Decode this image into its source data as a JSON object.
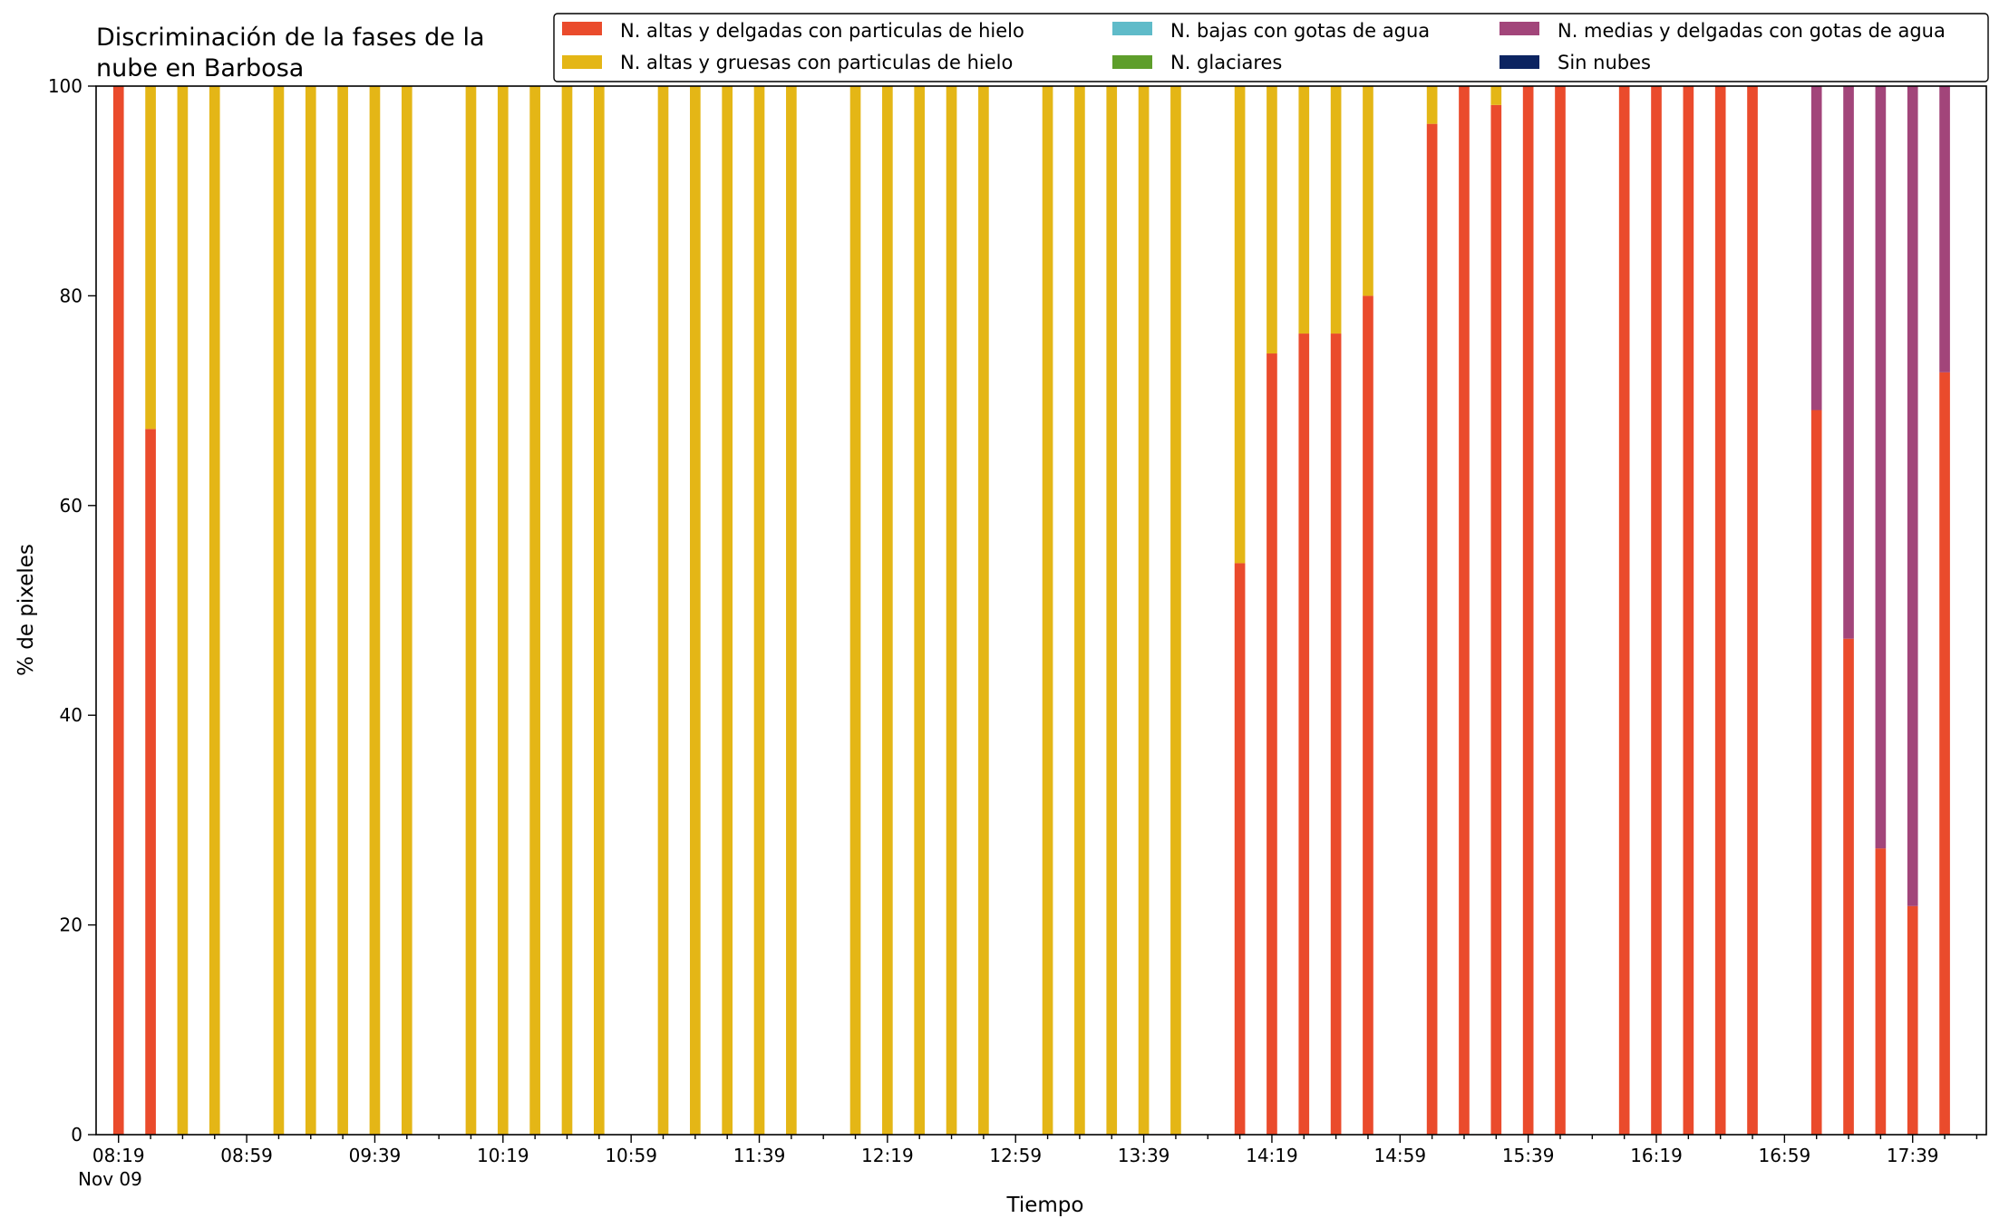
{
  "chart_data": {
    "type": "bar",
    "stacked": true,
    "title_lines": [
      "Discriminación de la fases de la",
      "nube en Barbosa"
    ],
    "xlabel": "Tiempo",
    "ylabel": "% de pixeles",
    "ylim": [
      0,
      100
    ],
    "yticks": [
      0,
      20,
      40,
      60,
      80,
      100
    ],
    "xlim": [
      "08:12",
      "18:02"
    ],
    "x_tick_labels": [
      "08:19",
      "08:59",
      "09:39",
      "10:19",
      "10:59",
      "11:39",
      "12:19",
      "12:59",
      "13:39",
      "14:19",
      "14:59",
      "15:39",
      "16:19",
      "16:59",
      "17:39"
    ],
    "x_date_label": "Nov 09",
    "grid": false,
    "legend_position": "top-right",
    "times": [
      "08:19",
      "08:29",
      "08:39",
      "08:49",
      "09:09",
      "09:19",
      "09:29",
      "09:39",
      "09:49",
      "10:09",
      "10:19",
      "10:29",
      "10:39",
      "10:49",
      "11:09",
      "11:19",
      "11:29",
      "11:39",
      "11:49",
      "12:09",
      "12:19",
      "12:29",
      "12:39",
      "12:49",
      "13:09",
      "13:19",
      "13:29",
      "13:39",
      "13:49",
      "14:09",
      "14:19",
      "14:29",
      "14:39",
      "14:49",
      "15:09",
      "15:19",
      "15:29",
      "15:39",
      "15:49",
      "16:09",
      "16:19",
      "16:29",
      "16:39",
      "16:49",
      "17:09",
      "17:19",
      "17:29",
      "17:39",
      "17:49"
    ],
    "series": [
      {
        "name": "N. altas y delgadas con particulas de hielo",
        "color": "#ea4b2c",
        "values": [
          100,
          67.3,
          0,
          0,
          0,
          0,
          0,
          0,
          0,
          0,
          0,
          0,
          0,
          0,
          0,
          0,
          0,
          0,
          0,
          0,
          0,
          0,
          0,
          0,
          0,
          0,
          0,
          0,
          0,
          54.5,
          74.5,
          76.4,
          76.4,
          80,
          96.4,
          100,
          98.2,
          100,
          100,
          100,
          100,
          100,
          100,
          100,
          69.1,
          47.3,
          27.3,
          21.8,
          72.7
        ]
      },
      {
        "name": "N. altas y gruesas con particulas de hielo",
        "color": "#e4b616",
        "values": [
          0,
          32.7,
          100,
          100,
          100,
          100,
          100,
          100,
          100,
          100,
          100,
          100,
          100,
          100,
          100,
          100,
          100,
          100,
          100,
          100,
          100,
          100,
          100,
          100,
          100,
          100,
          100,
          100,
          100,
          45.5,
          25.5,
          23.6,
          23.6,
          20,
          3.6,
          0,
          1.8,
          0,
          0,
          0,
          0,
          0,
          0,
          0,
          0,
          0,
          0,
          0,
          0
        ]
      },
      {
        "name": "N. bajas con gotas de agua",
        "color": "#5fbbc9",
        "values": [
          0,
          0,
          0,
          0,
          0,
          0,
          0,
          0,
          0,
          0,
          0,
          0,
          0,
          0,
          0,
          0,
          0,
          0,
          0,
          0,
          0,
          0,
          0,
          0,
          0,
          0,
          0,
          0,
          0,
          0,
          0,
          0,
          0,
          0,
          0,
          0,
          0,
          0,
          0,
          0,
          0,
          0,
          0,
          0,
          0,
          0,
          0,
          0,
          0
        ]
      },
      {
        "name": "N. glaciares",
        "color": "#5e9e2b",
        "values": [
          0,
          0,
          0,
          0,
          0,
          0,
          0,
          0,
          0,
          0,
          0,
          0,
          0,
          0,
          0,
          0,
          0,
          0,
          0,
          0,
          0,
          0,
          0,
          0,
          0,
          0,
          0,
          0,
          0,
          0,
          0,
          0,
          0,
          0,
          0,
          0,
          0,
          0,
          0,
          0,
          0,
          0,
          0,
          0,
          0,
          0,
          0,
          0,
          0
        ]
      },
      {
        "name": "N. medias y delgadas con gotas de agua",
        "color": "#a2457a",
        "values": [
          0,
          0,
          0,
          0,
          0,
          0,
          0,
          0,
          0,
          0,
          0,
          0,
          0,
          0,
          0,
          0,
          0,
          0,
          0,
          0,
          0,
          0,
          0,
          0,
          0,
          0,
          0,
          0,
          0,
          0,
          0,
          0,
          0,
          0,
          0,
          0,
          0,
          0,
          0,
          0,
          0,
          0,
          0,
          0,
          30.9,
          52.7,
          72.7,
          78.2,
          27.3
        ]
      },
      {
        "name": "Sin nubes",
        "color": "#0c2461",
        "values": [
          0,
          0,
          0,
          0,
          0,
          0,
          0,
          0,
          0,
          0,
          0,
          0,
          0,
          0,
          0,
          0,
          0,
          0,
          0,
          0,
          0,
          0,
          0,
          0,
          0,
          0,
          0,
          0,
          0,
          0,
          0,
          0,
          0,
          0,
          0,
          0,
          0,
          0,
          0,
          0,
          0,
          0,
          0,
          0,
          0,
          0,
          0,
          0,
          0
        ]
      }
    ]
  }
}
